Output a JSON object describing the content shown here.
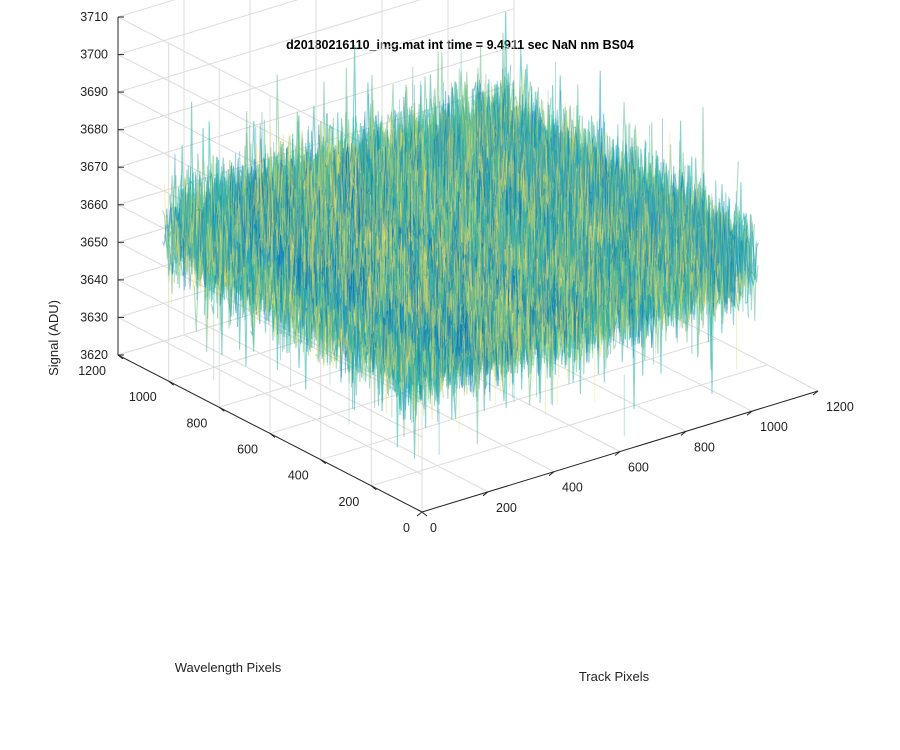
{
  "chart_data": {
    "type": "surface",
    "title": "d20180216110_img.mat int time = 9.4911 sec  NaN nm BS04",
    "xlabel": "Track Pixels",
    "ylabel": "Wavelength Pixels",
    "zlabel": "Signal (ADU)",
    "xlim": [
      0,
      1200
    ],
    "ylim": [
      0,
      1200
    ],
    "zlim": [
      3620,
      3710
    ],
    "x_ticks": [
      "0",
      "200",
      "400",
      "600",
      "800",
      "1000",
      "1200"
    ],
    "y_ticks": [
      "0",
      "200",
      "400",
      "600",
      "800",
      "1000",
      "1200"
    ],
    "z_ticks": [
      "3620",
      "3630",
      "3640",
      "3650",
      "3660",
      "3670",
      "3680",
      "3690",
      "3700",
      "3710"
    ],
    "data_extent": {
      "x": [
        0,
        1024
      ],
      "y": [
        0,
        1024
      ]
    },
    "signal_mean": 3660,
    "signal_range": [
      3620,
      3705
    ],
    "grid": true,
    "colormap": [
      "#0072bd",
      "#1a9bc9",
      "#26b2a5",
      "#6cc08a",
      "#d8d46a",
      "#f5e061"
    ]
  }
}
